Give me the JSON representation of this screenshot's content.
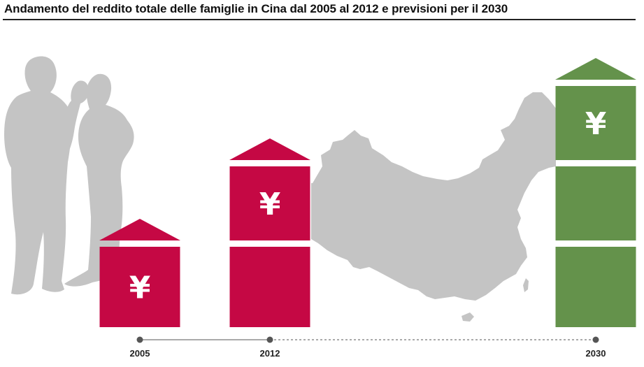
{
  "chart_data": {
    "type": "bar",
    "title": "Andamento del reddito totale delle famiglie in Cina dal 2005 al 2012 e previsioni per il 2030",
    "categories": [
      "2005",
      "2012",
      "2030"
    ],
    "values": [
      1,
      2,
      3
    ],
    "unit_symbol": "¥",
    "xlabel": "",
    "ylabel": "",
    "ylim": [
      0,
      3
    ],
    "series_colors": [
      "#c50844",
      "#c50844",
      "#64924b"
    ],
    "timeline_styles": [
      "solid",
      "dashed"
    ],
    "background_images": [
      "family-silhouette",
      "china-map-silhouette"
    ],
    "silhouette_color": "#c4c4c4"
  }
}
